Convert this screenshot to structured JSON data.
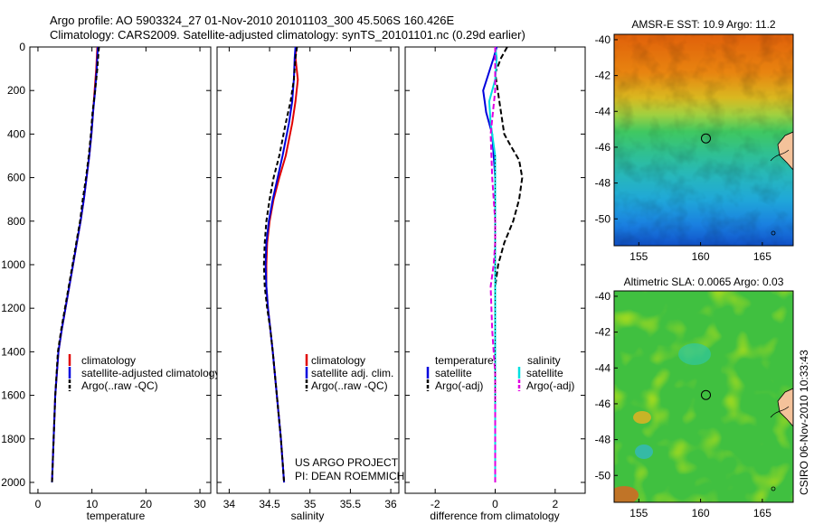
{
  "header": {
    "title_line1": "Argo profile: AO 5903324_27 01-Nov-2010 20101103_300 45.506S 160.426E",
    "title_line2": "Climatology: CARS2009. Satellite-adjusted climatology: synTS_20101101.nc (0.29d earlier)"
  },
  "credit": {
    "line1": "US ARGO PROJECT",
    "line2": "PI: DEAN ROEMMICH"
  },
  "side_stamp": "CSIRO 06-Nov-2010 10:33:43",
  "colors": {
    "climatology": "#e00000",
    "satellite": "#0000dd",
    "argo": "#000000",
    "satellite_salinity": "#00e0e0",
    "argo_salinity": "#e000e0"
  },
  "legends": {
    "temperature": [
      "climatology",
      "satellite-adjusted climatology",
      "Argo(..raw -QC)"
    ],
    "salinity": [
      "climatology",
      "satellite adj. clim.",
      "Argo(..raw -QC)"
    ],
    "difference": {
      "temperature_header": "temperature",
      "salinity_header": "salinity",
      "temperature_items": [
        "satellite",
        "Argo(-adj)"
      ],
      "salinity_items": [
        "satellite",
        "Argo(-adj)"
      ]
    }
  },
  "chart_data": [
    {
      "type": "line",
      "xlabel": "temperature",
      "ylabel": "",
      "xlim": [
        -1.5,
        32
      ],
      "ylim": [
        2050,
        0
      ],
      "xticks": [
        "0",
        "10",
        "20",
        "30"
      ],
      "yticks": [
        "0",
        "200",
        "400",
        "600",
        "800",
        "1000",
        "1200",
        "1400",
        "1600",
        "1800",
        "2000"
      ],
      "series": [
        {
          "name": "climatology",
          "x": [
            11.0,
            10.8,
            10.5,
            10.2,
            9.9,
            9.5,
            9.0,
            8.5,
            7.9,
            7.2,
            6.5,
            5.8,
            5.1,
            4.4,
            3.8,
            3.2,
            2.9,
            2.6
          ],
          "y": [
            0,
            100,
            200,
            300,
            400,
            500,
            600,
            700,
            800,
            900,
            1000,
            1100,
            1200,
            1300,
            1400,
            1600,
            1800,
            2000
          ]
        },
        {
          "name": "satellite-adjusted climatology",
          "x": [
            11.1,
            10.9,
            10.6,
            10.2,
            9.9,
            9.5,
            9.0,
            8.5,
            7.9,
            7.2,
            6.5,
            5.8,
            5.1,
            4.4,
            3.8,
            3.2,
            2.9,
            2.6
          ],
          "y": [
            0,
            100,
            200,
            300,
            400,
            500,
            600,
            700,
            800,
            900,
            1000,
            1100,
            1200,
            1300,
            1400,
            1600,
            1800,
            2000
          ]
        },
        {
          "name": "Argo(..raw -QC)",
          "x": [
            11.3,
            11.0,
            10.6,
            10.1,
            9.8,
            9.4,
            8.9,
            8.3,
            7.8,
            7.1,
            6.4,
            5.7,
            5.0,
            4.3,
            3.7,
            3.2,
            2.9,
            2.6
          ],
          "y": [
            0,
            100,
            200,
            300,
            400,
            500,
            600,
            700,
            800,
            900,
            1000,
            1100,
            1200,
            1300,
            1400,
            1600,
            1800,
            2000
          ]
        }
      ]
    },
    {
      "type": "line",
      "xlabel": "salinity",
      "ylabel": "",
      "xlim": [
        33.85,
        36.1
      ],
      "ylim": [
        2050,
        0
      ],
      "xticks": [
        "34",
        "34.5",
        "35",
        "35.5",
        "36"
      ],
      "series": [
        {
          "name": "climatology",
          "x": [
            34.83,
            34.82,
            34.85,
            34.82,
            34.78,
            34.7,
            34.62,
            34.55,
            34.5,
            34.47,
            34.46,
            34.46,
            34.48,
            34.51,
            34.54,
            34.59,
            34.64,
            34.68
          ],
          "y": [
            0,
            50,
            150,
            250,
            350,
            500,
            600,
            700,
            800,
            900,
            1000,
            1100,
            1200,
            1300,
            1400,
            1600,
            1800,
            2000
          ]
        },
        {
          "name": "satellite adj. clim.",
          "x": [
            34.82,
            34.81,
            34.8,
            34.78,
            34.74,
            34.66,
            34.6,
            34.54,
            34.49,
            34.46,
            34.45,
            34.46,
            34.48,
            34.51,
            34.54,
            34.59,
            34.64,
            34.68
          ],
          "y": [
            0,
            50,
            150,
            250,
            350,
            500,
            600,
            700,
            800,
            900,
            1000,
            1100,
            1200,
            1300,
            1400,
            1600,
            1800,
            2000
          ]
        },
        {
          "name": "Argo(..raw -QC)",
          "x": [
            34.84,
            34.82,
            34.8,
            34.76,
            34.7,
            34.62,
            34.55,
            34.5,
            34.46,
            34.44,
            34.43,
            34.44,
            34.47,
            34.51,
            34.54,
            34.59,
            34.64,
            34.68
          ],
          "y": [
            0,
            50,
            150,
            250,
            350,
            500,
            600,
            700,
            800,
            900,
            1000,
            1100,
            1200,
            1300,
            1400,
            1600,
            1800,
            2000
          ]
        }
      ]
    },
    {
      "type": "line",
      "xlabel": "difference from climatology",
      "ylabel": "",
      "xlim": [
        -3.0,
        3.0
      ],
      "ylim": [
        2050,
        0
      ],
      "xticks": [
        "-2",
        "0",
        "2"
      ],
      "series": [
        {
          "name": "temperature satellite",
          "x": [
            0.05,
            -0.05,
            -0.4,
            -0.35,
            -0.3,
            -0.1,
            0.0,
            0.0,
            0.0,
            0.0,
            0.0,
            0.0,
            0.0
          ],
          "y": [
            0,
            50,
            200,
            250,
            300,
            400,
            600,
            800,
            1000,
            1200,
            1500,
            1800,
            2000
          ]
        },
        {
          "name": "temperature Argo(-adj)",
          "x": [
            0.4,
            0.2,
            0.0,
            0.3,
            0.5,
            0.8,
            0.9,
            0.8,
            0.6,
            0.3,
            0.1,
            0.0,
            0.0,
            0.0
          ],
          "y": [
            0,
            50,
            120,
            400,
            450,
            520,
            600,
            700,
            800,
            900,
            1000,
            1100,
            1500,
            2000
          ]
        },
        {
          "name": "salinity satellite",
          "x": [
            0.0,
            0.05,
            0.0,
            -0.2,
            -0.15,
            0.0,
            0.0,
            0.0,
            0.0,
            0.0
          ],
          "y": [
            0,
            50,
            150,
            250,
            350,
            500,
            800,
            1200,
            1600,
            2000
          ]
        },
        {
          "name": "salinity Argo(-adj)",
          "x": [
            0.0,
            0.0,
            -0.15,
            -0.1,
            0.0,
            0.0,
            -0.05,
            -0.15,
            -0.1,
            0.0,
            0.0
          ],
          "y": [
            0,
            200,
            400,
            600,
            800,
            900,
            1000,
            1100,
            1300,
            1500,
            2000
          ]
        }
      ]
    },
    {
      "type": "heatmap",
      "title": "AMSR-E SST: 10.9 Argo: 11.2",
      "xlim": [
        153,
        167.5
      ],
      "ylim": [
        -51.5,
        -39.7
      ],
      "xticks": [
        "155",
        "160",
        "165"
      ],
      "yticks": [
        "-40",
        "-42",
        "-44",
        "-46",
        "-48",
        "-50"
      ],
      "marker": {
        "lon": 160.43,
        "lat": -45.51
      }
    },
    {
      "type": "heatmap",
      "title": "Altimetric SLA: 0.0065 Argo: 0.03",
      "xlim": [
        153,
        167.5
      ],
      "ylim": [
        -51.5,
        -39.7
      ],
      "xticks": [
        "155",
        "160",
        "165"
      ],
      "yticks": [
        "-40",
        "-42",
        "-44",
        "-46",
        "-48",
        "-50"
      ],
      "marker": {
        "lon": 160.43,
        "lat": -45.51
      }
    }
  ]
}
